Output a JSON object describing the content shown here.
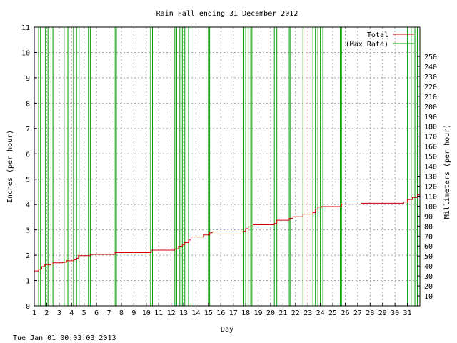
{
  "chart_data": {
    "type": "line",
    "title": "Rain Fall ending 31 December 2012",
    "xlabel": "Day",
    "ylabel_left": "Inches (per hour)",
    "ylabel_right": "Millimeters (per hour)",
    "xlim": [
      1,
      32
    ],
    "ylim_left": [
      0,
      11
    ],
    "x_ticks": [
      "1",
      "2",
      "3",
      "4",
      "5",
      "6",
      "7",
      "8",
      "9",
      "10",
      "11",
      "12",
      "13",
      "14",
      "15",
      "16",
      "17",
      "18",
      "19",
      "20",
      "21",
      "22",
      "23",
      "24",
      "25",
      "26",
      "27",
      "28",
      "29",
      "30",
      "31"
    ],
    "y_ticks_left": [
      "0",
      "1",
      "2",
      "3",
      "4",
      "5",
      "6",
      "7",
      "8",
      "9",
      "10",
      "11"
    ],
    "y_ticks_right": [
      "10",
      "20",
      "30",
      "40",
      "50",
      "60",
      "70",
      "80",
      "90",
      "100",
      "110",
      "120",
      "130",
      "140",
      "150",
      "160",
      "170",
      "180",
      "190",
      "200",
      "210",
      "220",
      "230",
      "240",
      "250"
    ],
    "grid": true,
    "legend_position": "top-right",
    "series": [
      {
        "name": "Total",
        "color": "#cc0000",
        "points": [
          [
            1.0,
            1.38
          ],
          [
            1.35,
            1.45
          ],
          [
            1.6,
            1.55
          ],
          [
            1.85,
            1.62
          ],
          [
            2.3,
            1.65
          ],
          [
            2.5,
            1.7
          ],
          [
            3.3,
            1.72
          ],
          [
            3.6,
            1.78
          ],
          [
            4.2,
            1.82
          ],
          [
            4.4,
            1.88
          ],
          [
            4.55,
            1.98
          ],
          [
            5.5,
            2.03
          ],
          [
            7.5,
            2.1
          ],
          [
            10.4,
            2.2
          ],
          [
            12.3,
            2.25
          ],
          [
            12.6,
            2.35
          ],
          [
            12.9,
            2.42
          ],
          [
            13.1,
            2.5
          ],
          [
            13.4,
            2.6
          ],
          [
            13.6,
            2.72
          ],
          [
            14.6,
            2.8
          ],
          [
            15.1,
            2.88
          ],
          [
            15.3,
            2.92
          ],
          [
            17.8,
            2.95
          ],
          [
            18.0,
            3.05
          ],
          [
            18.2,
            3.12
          ],
          [
            18.6,
            3.2
          ],
          [
            20.3,
            3.25
          ],
          [
            20.5,
            3.38
          ],
          [
            21.5,
            3.45
          ],
          [
            21.8,
            3.52
          ],
          [
            22.6,
            3.62
          ],
          [
            23.4,
            3.68
          ],
          [
            23.6,
            3.82
          ],
          [
            23.8,
            3.9
          ],
          [
            24.1,
            3.92
          ],
          [
            25.7,
            4.02
          ],
          [
            27.3,
            4.05
          ],
          [
            30.7,
            4.1
          ],
          [
            31.0,
            4.2
          ],
          [
            31.4,
            4.28
          ],
          [
            31.8,
            4.38
          ],
          [
            32.0,
            4.4
          ]
        ]
      },
      {
        "name": "(Max Rate)",
        "color": "#00a000",
        "spikes_x": [
          1.35,
          1.5,
          1.9,
          2.1,
          2.5,
          3.4,
          3.7,
          4.15,
          4.4,
          4.6,
          5.35,
          5.5,
          7.5,
          7.6,
          10.35,
          10.5,
          12.3,
          12.45,
          12.7,
          12.9,
          13.1,
          13.4,
          13.6,
          15.0,
          15.1,
          17.85,
          18.0,
          18.2,
          18.4,
          18.5,
          20.3,
          20.5,
          21.5,
          21.6,
          22.6,
          23.4,
          23.6,
          23.8,
          24.0,
          24.2,
          25.6,
          25.7,
          31.0,
          31.3,
          31.6,
          31.8
        ]
      }
    ]
  },
  "footer": {
    "timestamp": "Tue Jan 01 00:03:03 2013"
  }
}
